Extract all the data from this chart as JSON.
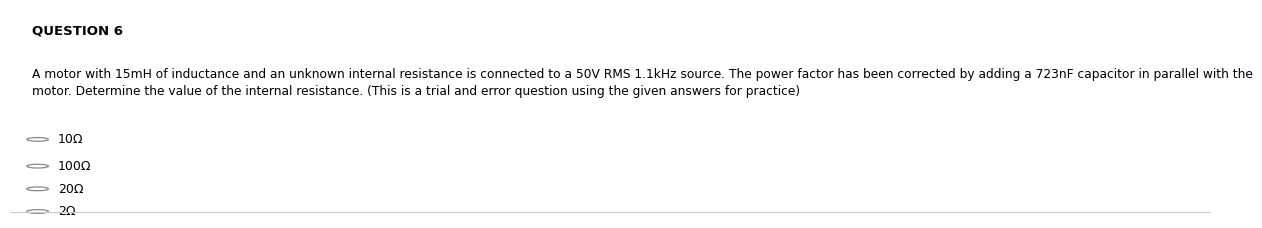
{
  "title": "QUESTION 6",
  "body_text": "A motor with 15mH of inductance and an unknown internal resistance is connected to a 50V RMS 1.1kHz source. The power factor has been corrected by adding a 723nF capacitor in parallel with the\nmotor. Determine the value of the internal resistance. (This is a trial and error question using the given answers for practice)",
  "options": [
    "10Ω",
    "100Ω",
    "20Ω",
    "2Ω"
  ],
  "background_color": "#ffffff",
  "text_color": "#000000",
  "title_fontsize": 9.5,
  "body_fontsize": 8.8,
  "option_fontsize": 9.0,
  "border_color": "#cccccc"
}
